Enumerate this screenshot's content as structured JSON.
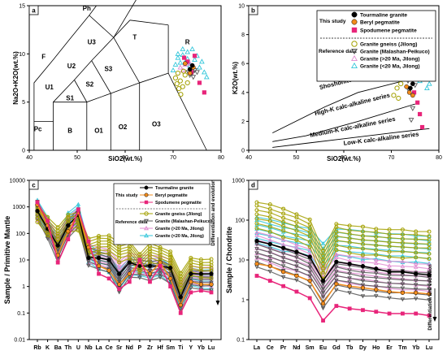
{
  "chart_data": [
    {
      "panel": "a",
      "type": "scatter",
      "xlabel": "SiO2(wt.%)",
      "ylabel": "Na2O+K2O(wt.%)",
      "xlim": [
        40,
        80
      ],
      "ylim": [
        0,
        15
      ],
      "xticks": [
        "40",
        "50",
        "60",
        "70",
        "80"
      ],
      "yticks": [
        "0",
        "5",
        "10",
        "15"
      ],
      "field_labels": [
        "Ph",
        "U3",
        "T",
        "R",
        "F",
        "U2",
        "S3",
        "U1",
        "S2",
        "S1",
        "Pc",
        "B",
        "O1",
        "O2",
        "O3"
      ],
      "series": [
        {
          "name": "Tourmaline granite",
          "color": "#000000",
          "marker": "circle",
          "points": [
            [
              73.5,
              8.4
            ],
            [
              74.0,
              8.8
            ]
          ]
        },
        {
          "name": "Beryl pegmatite",
          "color": "#f28c1c",
          "marker": "circle",
          "points": [
            [
              72.5,
              9.0
            ],
            [
              73.5,
              8.0
            ],
            [
              74.2,
              8.6
            ]
          ]
        },
        {
          "name": "Spodumene pegmatite",
          "color": "#e8257a",
          "marker": "square",
          "points": [
            [
              72.3,
              9.6
            ],
            [
              73.0,
              9.2
            ],
            [
              74.5,
              9.8
            ],
            [
              75.5,
              7.0
            ],
            [
              76.5,
              6.0
            ],
            [
              73.8,
              8.1
            ]
          ]
        },
        {
          "name": "Granite gneiss (Jilong)",
          "color": "#a3a000",
          "marker": "circle-open",
          "points": [
            [
              70.5,
              7.5
            ],
            [
              71.0,
              8.0
            ],
            [
              71.5,
              7.2
            ],
            [
              72.0,
              6.6
            ],
            [
              72.5,
              7.8
            ],
            [
              71.2,
              6.4
            ],
            [
              70.8,
              6.9
            ],
            [
              73.0,
              7.0
            ],
            [
              72.2,
              8.2
            ],
            [
              71.6,
              5.8
            ]
          ]
        },
        {
          "name": "Granite (Malashan-Peikuco)",
          "color": "#555555",
          "marker": "triangle-down-open",
          "points": [
            [
              73.5,
              7.8
            ],
            [
              74.0,
              8.0
            ],
            [
              74.5,
              8.3
            ],
            [
              73.2,
              8.1
            ],
            [
              74.2,
              7.6
            ],
            [
              75.0,
              8.1
            ]
          ]
        },
        {
          "name": "Granite (>20 Ma, Jilong)",
          "color": "#e08ad0",
          "marker": "triangle-open",
          "points": [
            [
              71.5,
              8.6
            ],
            [
              72.5,
              8.9
            ],
            [
              73.0,
              9.1
            ],
            [
              72.0,
              8.3
            ],
            [
              73.5,
              9.0
            ],
            [
              74.0,
              8.4
            ]
          ]
        },
        {
          "name": "Granite (<20 Ma, Jilong)",
          "color": "#33c6da",
          "marker": "triangle-open",
          "points": [
            [
              71.0,
              9.6
            ],
            [
              72.0,
              9.9
            ],
            [
              73.0,
              10.2
            ],
            [
              74.5,
              9.4
            ],
            [
              75.5,
              8.6
            ],
            [
              76.5,
              8.1
            ],
            [
              77.0,
              7.6
            ],
            [
              72.5,
              9.1
            ],
            [
              71.5,
              9.1
            ],
            [
              70.5,
              8.9
            ],
            [
              73.5,
              8.8
            ],
            [
              75.0,
              9.8
            ],
            [
              76.0,
              9.2
            ],
            [
              74.0,
              10.5
            ],
            [
              72.0,
              10.5
            ],
            [
              70.0,
              8.3
            ],
            [
              71.0,
              10.0
            ],
            [
              73.0,
              9.5
            ]
          ]
        }
      ]
    },
    {
      "panel": "b",
      "type": "scatter",
      "xlabel": "SiO2(wt.%)",
      "ylabel": "K2O(wt.%)",
      "xlim": [
        40,
        80
      ],
      "ylim": [
        0,
        10
      ],
      "xticks": [
        "40",
        "50",
        "60",
        "70",
        "80"
      ],
      "yticks": [
        "0",
        "2",
        "4",
        "6",
        "8",
        "10"
      ],
      "series_labels": [
        "Shoshonite series",
        "High-K calc-alkaline series",
        "Medium-K calc-alkaline series",
        "Low-K calc-alkaline series"
      ],
      "legend_headers": {
        "this_study": "This study",
        "reference": "Reference data"
      },
      "series": [
        {
          "name": "Tourmaline granite",
          "color": "#000000",
          "marker": "circle",
          "points": [
            [
              74.0,
              4.3
            ],
            [
              74.5,
              4.6
            ]
          ]
        },
        {
          "name": "Beryl pegmatite",
          "color": "#f28c1c",
          "marker": "circle",
          "points": [
            [
              73.2,
              4.4
            ],
            [
              73.8,
              4.0
            ],
            [
              74.5,
              3.8
            ]
          ]
        },
        {
          "name": "Spodumene pegmatite",
          "color": "#e8257a",
          "marker": "square",
          "points": [
            [
              75.5,
              3.3
            ],
            [
              76.0,
              2.5
            ],
            [
              76.5,
              1.6
            ],
            [
              74.8,
              4.0
            ]
          ]
        },
        {
          "name": "Granite gneiss (Jilong)",
          "color": "#a3a000",
          "marker": "circle-open",
          "points": [
            [
              70.0,
              8.1
            ],
            [
              71.0,
              5.1
            ],
            [
              72.0,
              4.6
            ],
            [
              71.5,
              3.6
            ],
            [
              70.5,
              3.8
            ],
            [
              72.5,
              5.2
            ],
            [
              71.2,
              4.3
            ]
          ]
        },
        {
          "name": "Granite (Malashan-Peikuco)",
          "color": "#555555",
          "marker": "triangle-down-open",
          "points": [
            [
              73.5,
              4.8
            ],
            [
              74.0,
              5.0
            ],
            [
              74.5,
              2.9
            ],
            [
              74.2,
              2.1
            ],
            [
              75.0,
              4.5
            ],
            [
              73.8,
              4.1
            ]
          ]
        },
        {
          "name": "Granite (>20 Ma, Jilong)",
          "color": "#e08ad0",
          "marker": "triangle-open",
          "points": [
            [
              72.0,
              5.6
            ],
            [
              73.0,
              5.3
            ],
            [
              74.0,
              5.5
            ],
            [
              72.5,
              4.9
            ],
            [
              73.5,
              6.0
            ]
          ]
        },
        {
          "name": "Granite (<20 Ma, Jilong)",
          "color": "#33c6da",
          "marker": "triangle-open",
          "points": [
            [
              70.0,
              7.6
            ],
            [
              71.0,
              8.0
            ],
            [
              72.0,
              7.5
            ],
            [
              73.0,
              7.0
            ],
            [
              74.0,
              6.5
            ],
            [
              75.0,
              5.5
            ],
            [
              76.0,
              4.8
            ],
            [
              77.0,
              5.2
            ],
            [
              78.0,
              4.6
            ],
            [
              72.5,
              6.5
            ],
            [
              71.5,
              6.0
            ],
            [
              73.5,
              7.2
            ],
            [
              74.5,
              6.0
            ],
            [
              75.5,
              6.5
            ],
            [
              76.5,
              5.8
            ],
            [
              70.5,
              5.6
            ],
            [
              72.0,
              4.9
            ],
            [
              73.0,
              5.9
            ],
            [
              77.5,
              4.3
            ]
          ]
        }
      ]
    },
    {
      "panel": "c",
      "type": "line",
      "xlabel": "",
      "ylabel": "Sample / Primitive Mantle",
      "yscale": "log",
      "ylim": [
        0.01,
        10000
      ],
      "yticks": [
        "0.01",
        "0.1",
        "1",
        "10",
        "100",
        "1000",
        "10000"
      ],
      "categories": [
        "Rb",
        "K",
        "Ba",
        "Th",
        "U",
        "Nb",
        "La",
        "Ce",
        "Sr",
        "Nd",
        "P",
        "Zr",
        "Hf",
        "Sm",
        "Ti",
        "Y",
        "Yb",
        "Lu"
      ],
      "annotation": "Differentiation and evolution",
      "legend_headers": {
        "this_study": "This study",
        "reference": "Reference data"
      },
      "series": [
        {
          "name": "Tourmaline granite",
          "color": "#000000",
          "values": [
            700,
            150,
            35,
            200,
            500,
            12,
            12,
            10,
            3,
            8,
            6,
            6,
            6,
            5,
            0.4,
            3,
            3,
            3
          ]
        },
        {
          "name": "Beryl pegmatite",
          "color": "#f28c1c",
          "values": [
            1200,
            200,
            15,
            120,
            600,
            30,
            6,
            4,
            1.2,
            3,
            8,
            3,
            8,
            2,
            0.2,
            1.5,
            1.2,
            1.2
          ]
        },
        {
          "name": "Spodumene pegmatite",
          "color": "#e8257a",
          "values": [
            1500,
            300,
            8,
            60,
            800,
            50,
            3,
            2,
            0.8,
            1.5,
            10,
            1.5,
            6,
            1,
            0.1,
            0.6,
            0.7,
            0.6
          ]
        },
        {
          "name": "Granite gneiss (Jilong)",
          "color": "#a3a000",
          "values": [
            600,
            200,
            80,
            250,
            300,
            30,
            40,
            40,
            20,
            25,
            8,
            20,
            15,
            10,
            1.5,
            6,
            5,
            5
          ]
        },
        {
          "name": "Granite (Malashan-Peikuco)",
          "color": "#555555",
          "values": [
            800,
            150,
            20,
            150,
            400,
            15,
            10,
            8,
            1.5,
            5,
            5,
            4,
            5,
            3,
            0.3,
            2,
            1.8,
            1.8
          ]
        },
        {
          "name": "Granite (>20 Ma, Jilong)",
          "color": "#e08ad0",
          "values": [
            700,
            180,
            40,
            220,
            400,
            18,
            15,
            12,
            4,
            9,
            7,
            7,
            7,
            5,
            0.6,
            3,
            2.5,
            2.5
          ]
        },
        {
          "name": "Granite (<20 Ma, Jilong)",
          "color": "#33c6da",
          "values": [
            900,
            200,
            30,
            300,
            600,
            20,
            10,
            8,
            2,
            6,
            6,
            5,
            6,
            3,
            0.4,
            2.5,
            2,
            2
          ]
        }
      ]
    },
    {
      "panel": "d",
      "type": "line",
      "xlabel": "",
      "ylabel": "Sample / Chondrite",
      "yscale": "log",
      "ylim": [
        0.1,
        1000
      ],
      "yticks": [
        "0.1",
        "1",
        "10",
        "100",
        "1000"
      ],
      "categories": [
        "La",
        "Ce",
        "Pr",
        "Nd",
        "Sm",
        "Eu",
        "Gd",
        "Tb",
        "Dy",
        "Ho",
        "Er",
        "Tm",
        "Yb",
        "Lu"
      ],
      "annotation": "Differentiation and evolution",
      "series": [
        {
          "name": "Tourmaline granite",
          "color": "#000000",
          "values": [
            30,
            25,
            20,
            16,
            12,
            3,
            9,
            8,
            7,
            6,
            5,
            5,
            4.5,
            4.2
          ]
        },
        {
          "name": "Beryl pegmatite",
          "color": "#f28c1c",
          "values": [
            8,
            7,
            5,
            4,
            3,
            0.8,
            2.5,
            2.2,
            2,
            1.8,
            1.6,
            1.5,
            1.5,
            1.4
          ]
        },
        {
          "name": "Spodumene pegmatite",
          "color": "#e8257a",
          "values": [
            4,
            3,
            2.2,
            1.6,
            1.1,
            0.3,
            0.7,
            0.6,
            0.55,
            0.5,
            0.45,
            0.45,
            0.45,
            0.4
          ]
        },
        {
          "name": "Granite gneiss (Jilong)",
          "color": "#a3a000",
          "values": [
            140,
            120,
            90,
            70,
            50,
            8,
            40,
            35,
            32,
            30,
            28,
            27,
            26,
            25
          ]
        },
        {
          "name": "Granite (Malashan-Peikuco)",
          "color": "#555555",
          "values": [
            15,
            12,
            9,
            7,
            5,
            1.5,
            4,
            3.5,
            3,
            2.8,
            2.6,
            2.5,
            2.4,
            2.3
          ]
        },
        {
          "name": "Granite (>20 Ma, Jilong)",
          "color": "#e08ad0",
          "values": [
            25,
            20,
            15,
            12,
            9,
            3,
            7,
            6,
            5.5,
            5,
            4.5,
            4.3,
            4,
            3.8
          ]
        },
        {
          "name": "Granite (<20 Ma, Jilong)",
          "color": "#33c6da",
          "values": [
            60,
            50,
            40,
            35,
            30,
            12,
            30,
            28,
            25,
            24,
            22,
            21,
            20,
            19
          ]
        }
      ]
    }
  ]
}
